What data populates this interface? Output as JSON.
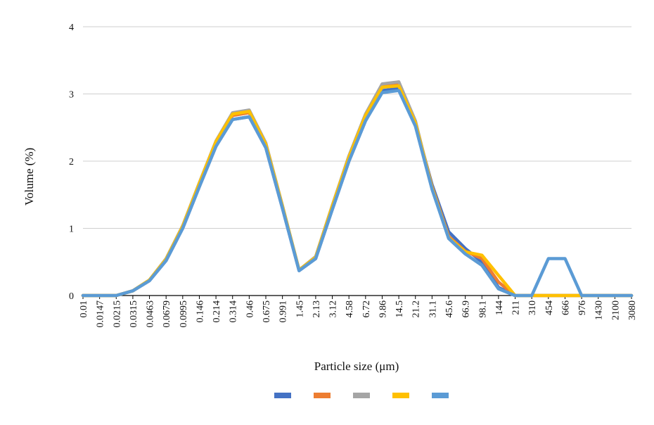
{
  "chart_data": {
    "type": "line",
    "title": "",
    "xlabel": "Particle size (μm)",
    "ylabel": "Volume (%)",
    "ylim": [
      0,
      4
    ],
    "yticks": [
      0,
      1,
      2,
      3,
      4
    ],
    "grid": "horizontal",
    "legend_position": "bottom",
    "x_tick_labels": [
      "0.01",
      "0.0147",
      "0.0215",
      "0.0315",
      "0.0463",
      "0.0679",
      "0.0995",
      "0.146",
      "0.214",
      "0.314",
      "0.46",
      "0.675",
      "0.991",
      "1.45",
      "2.13",
      "3.12",
      "4.58",
      "6.72",
      "9.86",
      "14.5",
      "21.2",
      "31.1",
      "45.6",
      "66.9",
      "98.1",
      "144",
      "211",
      "310",
      "454",
      "666",
      "976",
      "1430",
      "2100",
      "3080"
    ],
    "series": [
      {
        "color": "#4472C4",
        "values": [
          0,
          0,
          0,
          0.07,
          0.22,
          0.52,
          1.0,
          1.62,
          2.22,
          2.62,
          2.66,
          2.2,
          1.3,
          0.37,
          0.55,
          1.28,
          2.0,
          2.6,
          3.05,
          3.08,
          2.55,
          1.65,
          0.95,
          0.7,
          0.5,
          0.12,
          0,
          0,
          0,
          0,
          0,
          0,
          0,
          0
        ]
      },
      {
        "color": "#ED7D31",
        "values": [
          0,
          0,
          0,
          0.07,
          0.23,
          0.54,
          1.03,
          1.66,
          2.27,
          2.68,
          2.72,
          2.24,
          1.32,
          0.38,
          0.57,
          1.32,
          2.05,
          2.66,
          3.12,
          3.15,
          2.58,
          1.62,
          0.88,
          0.66,
          0.55,
          0.2,
          0,
          0,
          0,
          0,
          0,
          0,
          0,
          0
        ]
      },
      {
        "color": "#A5A5A5",
        "values": [
          0,
          0,
          0,
          0.07,
          0.23,
          0.55,
          1.04,
          1.68,
          2.3,
          2.72,
          2.76,
          2.27,
          1.34,
          0.38,
          0.58,
          1.34,
          2.08,
          2.7,
          3.15,
          3.18,
          2.6,
          1.6,
          0.85,
          0.62,
          0.45,
          0.1,
          0,
          0,
          0,
          0,
          0,
          0,
          0,
          0
        ]
      },
      {
        "color": "#FFC000",
        "values": [
          0,
          0,
          0,
          0.07,
          0.23,
          0.54,
          1.03,
          1.67,
          2.29,
          2.7,
          2.74,
          2.25,
          1.33,
          0.38,
          0.57,
          1.33,
          2.06,
          2.68,
          3.1,
          3.12,
          2.57,
          1.6,
          0.86,
          0.65,
          0.6,
          0.3,
          0,
          0,
          0,
          0,
          0,
          0,
          0,
          0
        ]
      },
      {
        "color": "#5B9BD5",
        "values": [
          0,
          0,
          0,
          0.07,
          0.22,
          0.52,
          1.0,
          1.62,
          2.22,
          2.62,
          2.66,
          2.2,
          1.3,
          0.37,
          0.55,
          1.28,
          2.0,
          2.6,
          3.02,
          3.05,
          2.52,
          1.58,
          0.85,
          0.62,
          0.45,
          0.1,
          0,
          0,
          0.55,
          0.55,
          0,
          0,
          0,
          0
        ]
      }
    ]
  }
}
